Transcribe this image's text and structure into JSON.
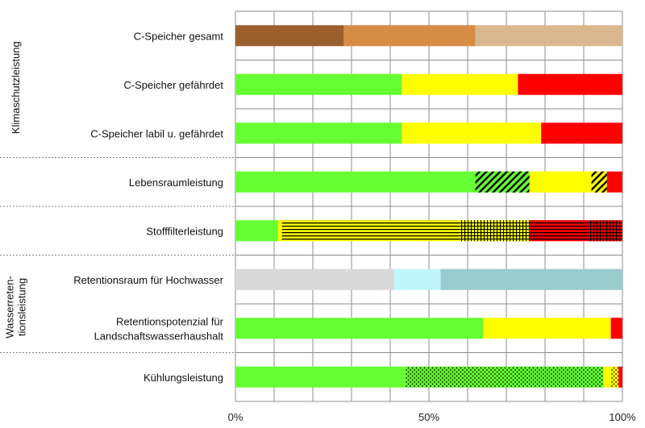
{
  "chart_data": {
    "type": "bar",
    "orientation": "horizontal",
    "stacked": true,
    "xlim": [
      0,
      100
    ],
    "x_ticks": [
      "0%",
      "50%",
      "100%"
    ],
    "grid": true,
    "groups": [
      {
        "lines": [
          "Klimaschutzleistung"
        ],
        "rows": [
          0,
          1,
          2
        ]
      },
      {
        "lines": [
          "Wasserreten-",
          "tionsleistung"
        ],
        "rows": [
          5,
          6
        ]
      }
    ],
    "categories": [
      [
        "C-Speicher gesamt"
      ],
      [
        "C-Speicher gefährdet"
      ],
      [
        "C-Speicher labil u. gefährdet"
      ],
      [
        "Lebensraumleistung"
      ],
      [
        "Stofffilterleistung"
      ],
      [
        "Retentionsraum für Hochwasser"
      ],
      [
        "Retentionspotenzial für",
        "Landschaftswasserhaushalt"
      ],
      [
        "Kühlungsleistung"
      ]
    ],
    "segments": [
      [
        {
          "value": 28,
          "color": "#9b5f2e",
          "pattern": "none"
        },
        {
          "value": 34,
          "color": "#d58c45",
          "pattern": "none"
        },
        {
          "value": 38,
          "color": "#d9b890",
          "pattern": "none"
        }
      ],
      [
        {
          "value": 43,
          "color": "#66ff33",
          "pattern": "none"
        },
        {
          "value": 30,
          "color": "#ffff00",
          "pattern": "none"
        },
        {
          "value": 27,
          "color": "#ff0000",
          "pattern": "none"
        }
      ],
      [
        {
          "value": 43,
          "color": "#66ff33",
          "pattern": "none"
        },
        {
          "value": 36,
          "color": "#ffff00",
          "pattern": "none"
        },
        {
          "value": 21,
          "color": "#ff0000",
          "pattern": "none"
        }
      ],
      [
        {
          "value": 62,
          "color": "#66ff33",
          "pattern": "none"
        },
        {
          "value": 14,
          "color": "#66ff33",
          "pattern": "diagonal"
        },
        {
          "value": 16,
          "color": "#ffff00",
          "pattern": "none"
        },
        {
          "value": 4,
          "color": "#ffff00",
          "pattern": "diagonal"
        },
        {
          "value": 4,
          "color": "#ff0000",
          "pattern": "none"
        }
      ],
      [
        {
          "value": 11,
          "color": "#66ff33",
          "pattern": "none"
        },
        {
          "value": 1,
          "color": "#ffff00",
          "pattern": "none"
        },
        {
          "value": 46,
          "color": "#ffff00",
          "pattern": "horizontal"
        },
        {
          "value": 18,
          "color": "#ffff00",
          "pattern": "grid"
        },
        {
          "value": 15,
          "color": "#ff0000",
          "pattern": "horizontal"
        },
        {
          "value": 9,
          "color": "#ff0000",
          "pattern": "grid"
        }
      ],
      [
        {
          "value": 41,
          "color": "#d9d9d9",
          "pattern": "none"
        },
        {
          "value": 12,
          "color": "#bff7fa",
          "pattern": "none"
        },
        {
          "value": 47,
          "color": "#99cccc",
          "pattern": "none"
        }
      ],
      [
        {
          "value": 64,
          "color": "#66ff33",
          "pattern": "none"
        },
        {
          "value": 33,
          "color": "#ffff00",
          "pattern": "none"
        },
        {
          "value": 3,
          "color": "#ff0000",
          "pattern": "none"
        }
      ],
      [
        {
          "value": 44,
          "color": "#66ff33",
          "pattern": "none"
        },
        {
          "value": 51,
          "color": "#66ff33",
          "pattern": "dots"
        },
        {
          "value": 2,
          "color": "#ffff00",
          "pattern": "none"
        },
        {
          "value": 2,
          "color": "#ffff00",
          "pattern": "dots"
        },
        {
          "value": 1,
          "color": "#ff0000",
          "pattern": "none"
        }
      ]
    ]
  }
}
